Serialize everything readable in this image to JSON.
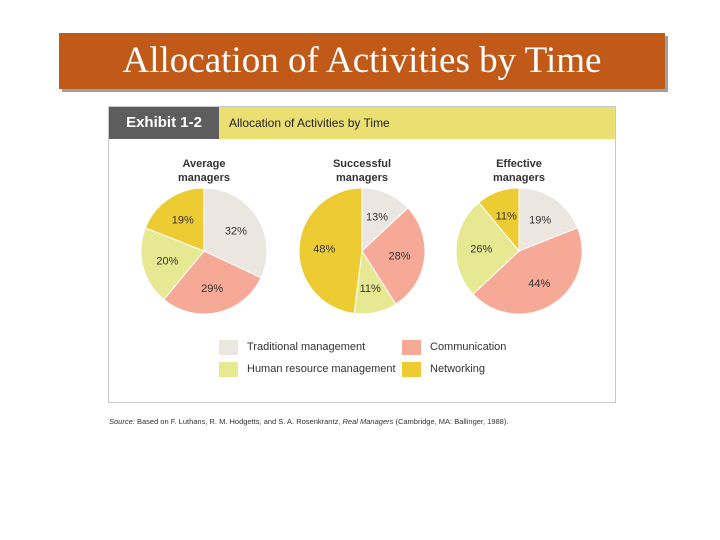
{
  "slide_title": "Allocation of Activities by Time",
  "exhibit": {
    "label": "Exhibit 1-2",
    "title": "Allocation of Activities by Time"
  },
  "colors": {
    "traditional": "#ece6e1",
    "communication": "#f5a996",
    "hr": "#e7e892",
    "networking": "#eccb33",
    "title_bar": "#c15a18",
    "header_band": "#ecdf72"
  },
  "chart_data": [
    {
      "type": "pie",
      "title": "Average managers",
      "title_lines": [
        "Average",
        "managers"
      ],
      "slices": [
        {
          "category": "Traditional management",
          "value": 32,
          "label": "32%"
        },
        {
          "category": "Communication",
          "value": 29,
          "label": "29%"
        },
        {
          "category": "Human resource management",
          "value": 20,
          "label": "20%"
        },
        {
          "category": "Networking",
          "value": 19,
          "label": "19%"
        }
      ]
    },
    {
      "type": "pie",
      "title": "Successful managers",
      "title_lines": [
        "Successful",
        "managers"
      ],
      "slices": [
        {
          "category": "Traditional management",
          "value": 13,
          "label": "13%"
        },
        {
          "category": "Communication",
          "value": 28,
          "label": "28%"
        },
        {
          "category": "Human resource management",
          "value": 11,
          "label": "11%"
        },
        {
          "category": "Networking",
          "value": 48,
          "label": "48%"
        }
      ]
    },
    {
      "type": "pie",
      "title": "Effective managers",
      "title_lines": [
        "Effective",
        "managers"
      ],
      "slices": [
        {
          "category": "Traditional management",
          "value": 19,
          "label": "19%"
        },
        {
          "category": "Communication",
          "value": 44,
          "label": "44%"
        },
        {
          "category": "Human resource management",
          "value": 26,
          "label": "26%"
        },
        {
          "category": "Networking",
          "value": 11,
          "label": "11%"
        }
      ]
    }
  ],
  "legend": [
    {
      "label": "Traditional management",
      "key": "traditional"
    },
    {
      "label": "Communication",
      "key": "communication"
    },
    {
      "label": "Human resource management",
      "key": "hr"
    },
    {
      "label": "Networking",
      "key": "networking"
    }
  ],
  "source": {
    "prefix": "Source:",
    "text1": "Based on F. Luthans, R. M. Hodgetts, and S. A. Rosenkrantz,",
    "book": "Real Managers",
    "text2": "(Cambridge, MA: Ballinger, 1988)."
  }
}
